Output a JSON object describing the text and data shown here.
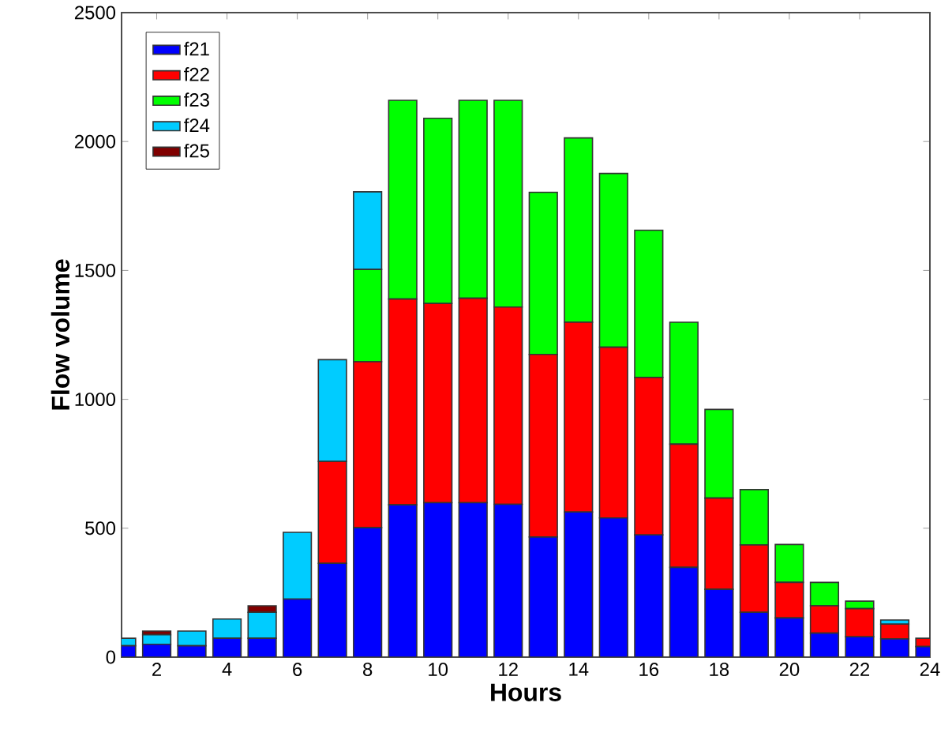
{
  "chart_data": {
    "type": "bar",
    "stacked": true,
    "xlabel": "Hours",
    "ylabel": "Flow volume",
    "x": [
      1,
      2,
      3,
      4,
      5,
      6,
      7,
      8,
      9,
      10,
      11,
      12,
      13,
      14,
      15,
      16,
      17,
      18,
      19,
      20,
      21,
      22,
      23,
      24
    ],
    "series": [
      {
        "name": "f21",
        "color": "#0000ff",
        "values": [
          44,
          50,
          44,
          73,
          73,
          225,
          364,
          502,
          591,
          599,
          599,
          593,
          466,
          563,
          540,
          474,
          348,
          263,
          174,
          152,
          93,
          79,
          71,
          41
        ]
      },
      {
        "name": "f22",
        "color": "#ff0000",
        "values": [
          0,
          0,
          0,
          0,
          0,
          0,
          395,
          644,
          798,
          773,
          793,
          765,
          708,
          736,
          662,
          611,
          478,
          354,
          261,
          138,
          106,
          109,
          57,
          32
        ]
      },
      {
        "name": "f23",
        "color": "#00ff00",
        "values": [
          0,
          0,
          0,
          0,
          0,
          0,
          0,
          358,
          771,
          718,
          768,
          802,
          629,
          715,
          674,
          571,
          473,
          344,
          215,
          147,
          91,
          29,
          0,
          0
        ]
      },
      {
        "name": "f24",
        "color": "#00ccff",
        "values": [
          29,
          37,
          57,
          75,
          101,
          259,
          395,
          301,
          0,
          0,
          0,
          0,
          0,
          0,
          0,
          0,
          0,
          0,
          0,
          0,
          0,
          0,
          16,
          0
        ]
      },
      {
        "name": "f25",
        "color": "#800000",
        "values": [
          0,
          14,
          0,
          0,
          25,
          0,
          0,
          0,
          0,
          0,
          0,
          0,
          0,
          0,
          0,
          0,
          0,
          0,
          0,
          0,
          0,
          0,
          0,
          0
        ]
      }
    ],
    "xlim": [
      1,
      24
    ],
    "xticks": [
      2,
      4,
      6,
      8,
      10,
      12,
      14,
      16,
      18,
      20,
      22,
      24
    ],
    "ylim": [
      0,
      2500
    ],
    "yticks": [
      0,
      500,
      1000,
      1500,
      2000,
      2500
    ],
    "legend": "top left",
    "grid": false
  }
}
